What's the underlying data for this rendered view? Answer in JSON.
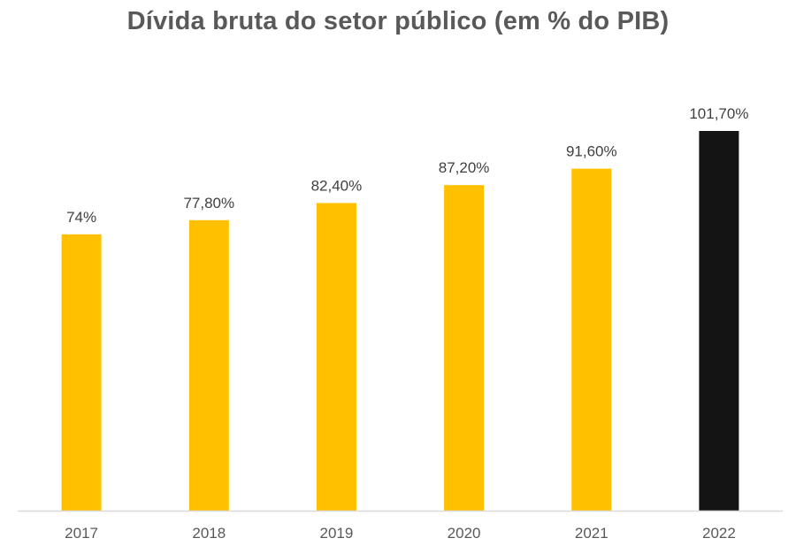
{
  "chart_data": {
    "type": "bar",
    "title": "Dívida bruta do setor público (em % do PIB)",
    "categories": [
      "2017",
      "2018",
      "2019",
      "2020",
      "2021",
      "2022"
    ],
    "values": [
      74.0,
      77.8,
      82.4,
      87.2,
      91.6,
      101.7
    ],
    "data_labels": [
      "74%",
      "77,80%",
      "82,40%",
      "87,20%",
      "91,60%",
      "101,70%"
    ],
    "bar_colors": [
      "#FFC000",
      "#FFC000",
      "#FFC000",
      "#FFC000",
      "#FFC000",
      "#141414"
    ],
    "ylim": [
      0,
      101.7
    ],
    "xlabel": "",
    "ylabel": "",
    "grid": false,
    "legend": "none",
    "axis_color": "#D9D9D9"
  }
}
